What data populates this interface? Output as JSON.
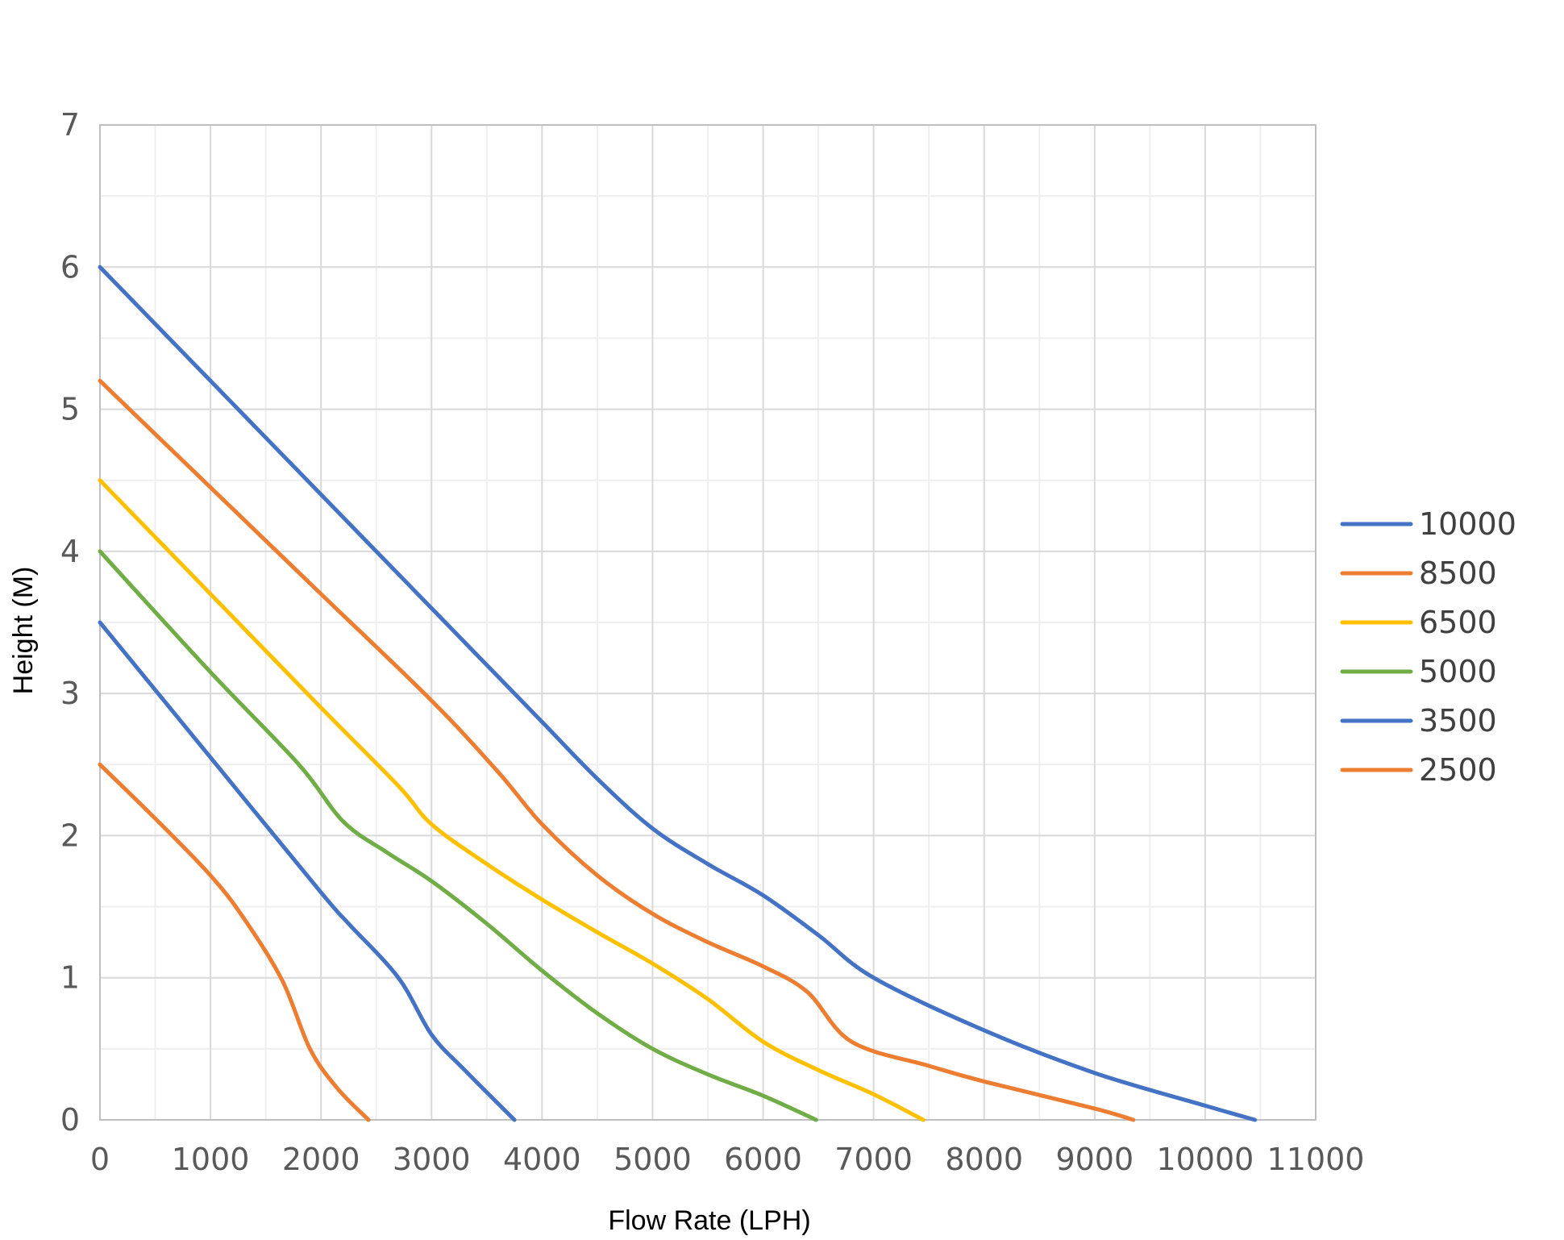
{
  "chart_data": {
    "type": "line",
    "title": "",
    "xlabel": "Flow Rate (LPH)",
    "ylabel": "Height (M)",
    "xlim": [
      0,
      11000
    ],
    "ylim": [
      0,
      7
    ],
    "xticks": [
      0,
      1000,
      2000,
      3000,
      4000,
      5000,
      6000,
      7000,
      8000,
      9000,
      10000,
      11000
    ],
    "yticks": [
      0,
      1,
      2,
      3,
      4,
      5,
      6,
      7
    ],
    "x_tick_labels": [
      "0",
      "1000",
      "2000",
      "3000",
      "4000",
      "5000",
      "6000",
      "7000",
      "8000",
      "9000",
      "10000",
      "11000"
    ],
    "y_tick_labels": [
      "0",
      "1",
      "2",
      "3",
      "4",
      "5",
      "6",
      "7"
    ],
    "grid": true,
    "minor_grid": true,
    "legend_position": "right",
    "series": [
      {
        "name": "10000",
        "color": "#4472C4",
        "points": [
          [
            0,
            6.0
          ],
          [
            1000,
            5.2
          ],
          [
            2000,
            4.4
          ],
          [
            3000,
            3.6
          ],
          [
            3500,
            3.2
          ],
          [
            4000,
            2.8
          ],
          [
            4500,
            2.4
          ],
          [
            5000,
            2.05
          ],
          [
            5500,
            1.8
          ],
          [
            6000,
            1.58
          ],
          [
            6500,
            1.3
          ],
          [
            7000,
            1.0
          ],
          [
            8000,
            0.63
          ],
          [
            9000,
            0.33
          ],
          [
            10000,
            0.1
          ],
          [
            10450,
            0.0
          ]
        ]
      },
      {
        "name": "8500",
        "color": "#ED7D31",
        "points": [
          [
            0,
            5.2
          ],
          [
            1000,
            4.45
          ],
          [
            2000,
            3.7
          ],
          [
            3000,
            2.95
          ],
          [
            3600,
            2.45
          ],
          [
            4000,
            2.08
          ],
          [
            4500,
            1.72
          ],
          [
            5000,
            1.45
          ],
          [
            5500,
            1.25
          ],
          [
            6000,
            1.08
          ],
          [
            6400,
            0.9
          ],
          [
            6800,
            0.55
          ],
          [
            7500,
            0.38
          ],
          [
            8000,
            0.27
          ],
          [
            9000,
            0.08
          ],
          [
            9350,
            0.0
          ]
        ]
      },
      {
        "name": "6500",
        "color": "#FFC000",
        "points": [
          [
            0,
            4.5
          ],
          [
            1000,
            3.7
          ],
          [
            2000,
            2.9
          ],
          [
            2700,
            2.35
          ],
          [
            3000,
            2.08
          ],
          [
            3500,
            1.8
          ],
          [
            4000,
            1.55
          ],
          [
            4500,
            1.32
          ],
          [
            5000,
            1.1
          ],
          [
            5500,
            0.85
          ],
          [
            6000,
            0.55
          ],
          [
            6500,
            0.35
          ],
          [
            7000,
            0.18
          ],
          [
            7450,
            0.0
          ]
        ]
      },
      {
        "name": "5000",
        "color": "#70AD47",
        "points": [
          [
            0,
            4.0
          ],
          [
            1000,
            3.15
          ],
          [
            1800,
            2.5
          ],
          [
            2200,
            2.1
          ],
          [
            2600,
            1.88
          ],
          [
            3000,
            1.68
          ],
          [
            3500,
            1.38
          ],
          [
            4000,
            1.05
          ],
          [
            4500,
            0.75
          ],
          [
            5000,
            0.5
          ],
          [
            5500,
            0.32
          ],
          [
            6000,
            0.17
          ],
          [
            6480,
            0.0
          ]
        ]
      },
      {
        "name": "3500",
        "color": "#4472C4",
        "points": [
          [
            0,
            3.5
          ],
          [
            1000,
            2.55
          ],
          [
            2000,
            1.6
          ],
          [
            2250,
            1.38
          ],
          [
            2700,
            1.0
          ],
          [
            3000,
            0.6
          ],
          [
            3300,
            0.35
          ],
          [
            3750,
            0.0
          ]
        ]
      },
      {
        "name": "2500",
        "color": "#ED7D31",
        "points": [
          [
            0,
            2.5
          ],
          [
            500,
            2.12
          ],
          [
            1000,
            1.72
          ],
          [
            1300,
            1.42
          ],
          [
            1650,
            0.98
          ],
          [
            1900,
            0.5
          ],
          [
            2150,
            0.22
          ],
          [
            2430,
            0.0
          ]
        ]
      }
    ]
  }
}
